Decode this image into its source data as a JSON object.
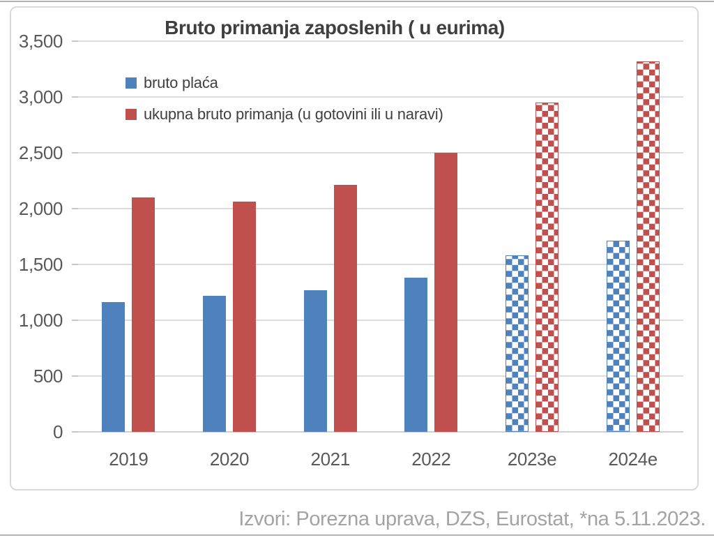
{
  "chart_data": {
    "type": "bar",
    "title": "Bruto primanja zaposlenih ( u eurima)",
    "categories": [
      "2019",
      "2020",
      "2021",
      "2022",
      "2023e",
      "2024e"
    ],
    "estimated": [
      false,
      false,
      false,
      false,
      true,
      true
    ],
    "series": [
      {
        "name": "bruto plaća",
        "color": "#4f81bd",
        "values": [
          1160,
          1220,
          1270,
          1380,
          1580,
          1710
        ]
      },
      {
        "name": "ukupna bruto primanja (u gotovini ili u naravi)",
        "color": "#c0504d",
        "values": [
          2100,
          2060,
          2210,
          2500,
          2950,
          3320
        ]
      }
    ],
    "ylim": [
      0,
      3500
    ],
    "ytick_step": 500,
    "ytick_labels": [
      "3,500",
      "3,000",
      "2,500",
      "2,000",
      "1,500",
      "1,000",
      "500",
      "0"
    ],
    "grid": "horizontal",
    "legend_position": "top-left-inside"
  },
  "source_note": "Izvori: Porezna uprava, DZS, Eurostat, *na 5.11.2023."
}
